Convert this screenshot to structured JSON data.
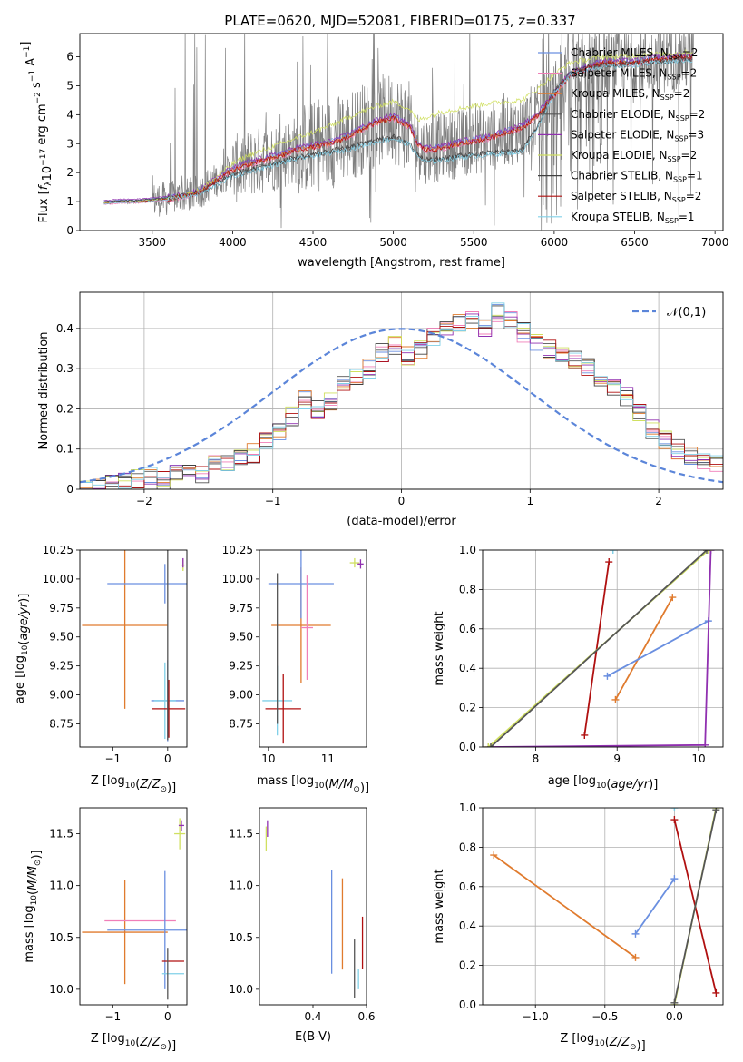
{
  "figure": {
    "title": "PLATE=0620, MJD=52081, FIBERID=0175, z=0.337"
  },
  "series_colors": {
    "Chabrier MILES": "#6a8fe0",
    "Salpeter MILES": "#f07fb8",
    "Kroupa MILES": "#e07b2e",
    "Chabrier ELODIE": "#555555",
    "Salpeter ELODIE": "#9030b0",
    "Kroupa ELODIE": "#d0e060",
    "Chabrier STELIB": "#404040",
    "Salpeter STELIB": "#b01010",
    "Kroupa STELIB": "#80d0e8",
    "Observed": "#7f7f7f",
    "Normal": "#5b85d9"
  },
  "chart_data": [
    {
      "id": "spectrum",
      "type": "line",
      "xlabel": "wavelength [Angstrom, rest frame]",
      "ylabel_parts": [
        "Flux [",
        "f",
        "λ",
        "10",
        "−17",
        " erg cm",
        "−2",
        " s",
        "−1",
        " A",
        "−1",
        "]"
      ],
      "xlim": [
        3050,
        7050
      ],
      "ylim": [
        0,
        6.8
      ],
      "xticks": [
        3500,
        4000,
        4500,
        5000,
        5500,
        6000,
        6500,
        7000
      ],
      "yticks": [
        0,
        1,
        2,
        3,
        4,
        5,
        6
      ],
      "legend": [
        {
          "model": "Chabrier MILES",
          "nssp": "2"
        },
        {
          "model": "Salpeter MILES",
          "nssp": "2"
        },
        {
          "model": "Kroupa MILES",
          "nssp": "2"
        },
        {
          "model": "Chabrier ELODIE",
          "nssp": "2"
        },
        {
          "model": "Salpeter ELODIE",
          "nssp": "3"
        },
        {
          "model": "Kroupa ELODIE",
          "nssp": "2"
        },
        {
          "model": "Chabrier STELIB",
          "nssp": "1"
        },
        {
          "model": "Salpeter STELIB",
          "nssp": "2"
        },
        {
          "model": "Kroupa STELIB",
          "nssp": "1"
        }
      ],
      "legend_prefix": "N",
      "legend_sub": "SSP",
      "legend_placement": "top-right",
      "model_groups": {
        "red": {
          "x": [
            3200,
            3300,
            3400,
            3500,
            3600,
            3700,
            3800,
            3900,
            4000,
            4100,
            4200,
            4300,
            4400,
            4500,
            4600,
            4700,
            4800,
            4900,
            5000,
            5100,
            5150,
            5200,
            5300,
            5400,
            5500,
            5600,
            5700,
            5800,
            5900,
            6000,
            6100,
            6200,
            6300,
            6400,
            6500,
            6600,
            6700,
            6800,
            6860
          ],
          "y": [
            0.95,
            1.0,
            1.0,
            1.05,
            1.1,
            1.2,
            1.35,
            1.75,
            2.1,
            2.3,
            2.45,
            2.6,
            2.8,
            2.9,
            3.0,
            3.2,
            3.5,
            3.75,
            3.9,
            3.6,
            3.0,
            2.8,
            2.85,
            3.0,
            3.1,
            3.2,
            3.4,
            3.55,
            4.0,
            4.7,
            5.4,
            5.6,
            5.8,
            5.8,
            5.8,
            5.9,
            5.95,
            6.0,
            6.0
          ]
        },
        "blue": {
          "x": [
            3200,
            3300,
            3400,
            3500,
            3600,
            3700,
            3800,
            3900,
            4000,
            4100,
            4200,
            4300,
            4400,
            4500,
            4600,
            4700,
            4800,
            4900,
            5000,
            5100,
            5150,
            5200,
            5300,
            5400,
            5500,
            5600,
            5700,
            5800,
            5900,
            6000,
            6100,
            6200,
            6300,
            6400,
            6500,
            6600,
            6700,
            6800,
            6860
          ],
          "y": [
            0.95,
            1.0,
            1.0,
            1.05,
            1.1,
            1.2,
            1.3,
            1.6,
            1.9,
            2.05,
            2.2,
            2.35,
            2.5,
            2.6,
            2.7,
            2.8,
            2.95,
            3.1,
            3.2,
            3.0,
            2.6,
            2.4,
            2.45,
            2.55,
            2.6,
            2.65,
            2.7,
            2.75,
            3.6,
            4.8,
            5.4,
            5.6,
            5.7,
            5.7,
            5.75,
            5.8,
            5.85,
            5.9,
            5.9
          ]
        },
        "yellow": {
          "x": [
            3200,
            3300,
            3400,
            3500,
            3600,
            3700,
            3800,
            3900,
            4000,
            4100,
            4200,
            4300,
            4400,
            4500,
            4600,
            4700,
            4800,
            4900,
            5000,
            5100,
            5150,
            5200,
            5300,
            5400,
            5500,
            5600,
            5700,
            5800,
            5900,
            6000,
            6100,
            6200,
            6300,
            6400,
            6500,
            6600,
            6700,
            6800,
            6860
          ],
          "y": [
            0.95,
            1.0,
            1.0,
            1.05,
            1.1,
            1.25,
            1.4,
            1.85,
            2.3,
            2.6,
            2.8,
            3.0,
            3.2,
            3.4,
            3.6,
            3.85,
            4.1,
            4.3,
            4.45,
            4.2,
            3.8,
            3.9,
            4.1,
            4.2,
            4.3,
            4.4,
            4.45,
            4.5,
            4.9,
            5.4,
            5.8,
            5.9,
            6.0,
            6.0,
            6.05,
            6.1,
            6.1,
            6.15,
            6.15
          ]
        }
      },
      "observed": {
        "xmin": 3200,
        "xmax": 6870,
        "noise_start": 3500,
        "noise_strong": [
          5850,
          6300
        ]
      }
    },
    {
      "id": "residuals",
      "type": "line",
      "xlabel": "(data-model)/error",
      "ylabel": "Normed distribution",
      "xlim": [
        -2.5,
        2.5
      ],
      "ylim": [
        0,
        0.49
      ],
      "xticks": [
        -2,
        -1,
        0,
        1,
        2
      ],
      "yticks": [
        0,
        0.1,
        0.2,
        0.3,
        0.4
      ],
      "grid": true,
      "legend_label": "𝒩(0,1)",
      "legend_placement": "top-right",
      "histogram": {
        "bin_width": 0.1,
        "centers": [
          -2.45,
          -2.35,
          -2.25,
          -2.15,
          -2.05,
          -1.95,
          -1.85,
          -1.75,
          -1.65,
          -1.55,
          -1.45,
          -1.35,
          -1.25,
          -1.15,
          -1.05,
          -0.95,
          -0.85,
          -0.75,
          -0.65,
          -0.55,
          -0.45,
          -0.35,
          -0.25,
          -0.15,
          -0.05,
          0.05,
          0.15,
          0.25,
          0.35,
          0.45,
          0.55,
          0.65,
          0.75,
          0.85,
          0.95,
          1.05,
          1.15,
          1.25,
          1.35,
          1.45,
          1.55,
          1.65,
          1.75,
          1.85,
          1.95,
          2.05,
          2.15,
          2.25,
          2.35,
          2.45
        ],
        "values": [
          0.005,
          0.01,
          0.02,
          0.02,
          0.025,
          0.03,
          0.02,
          0.04,
          0.05,
          0.04,
          0.06,
          0.07,
          0.08,
          0.09,
          0.12,
          0.14,
          0.18,
          0.22,
          0.2,
          0.22,
          0.26,
          0.28,
          0.3,
          0.34,
          0.36,
          0.33,
          0.35,
          0.38,
          0.4,
          0.41,
          0.42,
          0.4,
          0.44,
          0.42,
          0.39,
          0.37,
          0.35,
          0.33,
          0.32,
          0.3,
          0.28,
          0.25,
          0.23,
          0.19,
          0.15,
          0.12,
          0.1,
          0.08,
          0.07,
          0.06
        ]
      }
    },
    {
      "id": "age-vs-Z",
      "type": "scatter",
      "xlabel_parts": [
        "Z [log",
        "10",
        "(",
        "Z/Z",
        "⊙",
        ")]"
      ],
      "ylabel_parts": [
        "age  [log",
        "10",
        "(",
        "age/yr",
        ")]"
      ],
      "xlim": [
        -1.6,
        0.35
      ],
      "ylim": [
        8.55,
        10.25
      ],
      "xticks": [
        -1,
        0
      ],
      "yticks": [
        8.75,
        9.0,
        9.25,
        9.5,
        9.75,
        10.0,
        10.25
      ],
      "ytick_labels": [
        "8.75",
        "9.00",
        "9.25",
        "9.50",
        "9.75",
        "10.00",
        "10.25"
      ],
      "errorbars": [
        {
          "model": "Kroupa MILES",
          "x": -0.78,
          "y": 9.6,
          "xerr": 0.78,
          "yerr": 0.72
        },
        {
          "model": "Chabrier MILES",
          "x": -0.05,
          "y": 9.96,
          "xerr": 1.05,
          "yerr": 0.17
        },
        {
          "model": "Chabrier MILES",
          "x": 0.0,
          "y": 8.95,
          "xerr": 0.3,
          "yerr": 0.35
        },
        {
          "model": "Kroupa STELIB",
          "x": -0.05,
          "y": 8.95,
          "xerr": 0.2,
          "yerr": 0.33
        },
        {
          "model": "Salpeter STELIB",
          "x": 0.02,
          "y": 8.88,
          "xerr": 0.3,
          "yerr": 0.25
        },
        {
          "model": "Chabrier ELODIE",
          "x": 0.0,
          "y": 9.6,
          "xerr": 0.0,
          "yerr": 0.99
        },
        {
          "model": "Kroupa ELODIE",
          "x": 0.28,
          "y": 10.12,
          "xerr": 0.03,
          "yerr": 0.05
        },
        {
          "model": "Salpeter ELODIE",
          "x": 0.28,
          "y": 10.14,
          "xerr": 0.0,
          "yerr": 0.04
        }
      ]
    },
    {
      "id": "age-vs-mass",
      "type": "scatter",
      "xlabel_parts": [
        "mass [log",
        "10",
        "(",
        "M/M",
        "⊙",
        ")]"
      ],
      "xlim": [
        9.85,
        11.65
      ],
      "ylim": [
        8.55,
        10.25
      ],
      "xticks": [
        10,
        11
      ],
      "yticks": [
        8.75,
        9.0,
        9.25,
        9.5,
        9.75,
        10.0,
        10.25
      ],
      "ytick_labels": [
        "8.75",
        "9.00",
        "9.25",
        "9.50",
        "9.75",
        "10.00",
        "10.25"
      ],
      "errorbars": [
        {
          "model": "Kroupa MILES",
          "x": 10.55,
          "y": 9.6,
          "xerr": 0.5,
          "yerr": 0.5
        },
        {
          "model": "Chabrier MILES",
          "x": 10.55,
          "y": 9.96,
          "xerr": 0.55,
          "yerr": 0.3
        },
        {
          "model": "Salpeter MILES",
          "x": 10.65,
          "y": 9.58,
          "xerr": 0.1,
          "yerr": 0.45
        },
        {
          "model": "Kroupa STELIB",
          "x": 10.15,
          "y": 8.95,
          "xerr": 0.25,
          "yerr": 0.3
        },
        {
          "model": "Salpeter STELIB",
          "x": 10.25,
          "y": 8.88,
          "xerr": 0.3,
          "yerr": 0.3
        },
        {
          "model": "Chabrier ELODIE",
          "x": 10.15,
          "y": 9.4,
          "xerr": 0.0,
          "yerr": 0.65
        },
        {
          "model": "Kroupa ELODIE",
          "x": 11.45,
          "y": 10.14,
          "xerr": 0.08,
          "yerr": 0.04
        },
        {
          "model": "Salpeter ELODIE",
          "x": 11.55,
          "y": 10.13,
          "xerr": 0.05,
          "yerr": 0.04
        }
      ]
    },
    {
      "id": "mass-weight-vs-age",
      "type": "line",
      "xlabel_parts": [
        "age  [log",
        "10",
        "(",
        "age/yr",
        ")]"
      ],
      "ylabel": "mass weight",
      "xlim": [
        7.35,
        10.3
      ],
      "ylim": [
        0,
        1
      ],
      "xticks": [
        8,
        9,
        10
      ],
      "yticks": [
        0,
        0.2,
        0.4,
        0.6,
        0.8,
        1.0
      ],
      "ytick_labels": [
        "0.0",
        "0.2",
        "0.4",
        "0.6",
        "0.8",
        "1.0"
      ],
      "grid": true,
      "lines": [
        {
          "model": "Salpeter STELIB",
          "x": [
            8.6,
            8.9
          ],
          "y": [
            0.06,
            0.94
          ]
        },
        {
          "model": "Kroupa MILES",
          "x": [
            8.98,
            9.68
          ],
          "y": [
            0.24,
            0.76
          ]
        },
        {
          "model": "Chabrier MILES",
          "x": [
            8.88,
            10.12
          ],
          "y": [
            0.36,
            0.64
          ]
        },
        {
          "model": "Salpeter ELODIE",
          "x": [
            7.42,
            10.08,
            10.15
          ],
          "y": [
            0.0,
            0.01,
            1.0
          ]
        },
        {
          "model": "Kroupa ELODIE",
          "x": [
            7.42,
            10.12
          ],
          "y": [
            0.0,
            1.0
          ]
        },
        {
          "model": "Chabrier ELODIE",
          "x": [
            7.45,
            10.1
          ],
          "y": [
            0.0,
            1.0
          ]
        },
        {
          "model": "Kroupa STELIB",
          "x": [
            8.95
          ],
          "y": [
            1.0
          ]
        }
      ]
    },
    {
      "id": "mass-vs-Z",
      "type": "scatter",
      "xlabel_parts": [
        "Z [log",
        "10",
        "(",
        "Z/Z",
        "⊙",
        ")]"
      ],
      "ylabel_parts": [
        "mass [log",
        "10",
        "(",
        "M/M",
        "⊙",
        ")]"
      ],
      "xlim": [
        -1.6,
        0.35
      ],
      "ylim": [
        9.85,
        11.75
      ],
      "xticks": [
        -1,
        0
      ],
      "yticks": [
        10.0,
        10.5,
        11.0,
        11.5
      ],
      "ytick_labels": [
        "10.0",
        "10.5",
        "11.0",
        "11.5"
      ],
      "errorbars": [
        {
          "model": "Kroupa MILES",
          "x": -0.78,
          "y": 10.55,
          "xerr": 0.78,
          "yerr": 0.5
        },
        {
          "model": "Salpeter MILES",
          "x": -0.5,
          "y": 10.66,
          "xerr": 0.65,
          "yerr": 0.0
        },
        {
          "model": "Chabrier MILES",
          "x": -0.05,
          "y": 10.57,
          "xerr": 1.05,
          "yerr": 0.57
        },
        {
          "model": "Kroupa STELIB",
          "x": 0.1,
          "y": 10.15,
          "xerr": 0.2,
          "yerr": 0.0
        },
        {
          "model": "Salpeter STELIB",
          "x": 0.1,
          "y": 10.27,
          "xerr": 0.2,
          "yerr": 0.0
        },
        {
          "model": "Chabrier ELODIE",
          "x": 0.0,
          "y": 10.15,
          "xerr": 0.0,
          "yerr": 0.25
        },
        {
          "model": "Kroupa ELODIE",
          "x": 0.22,
          "y": 11.5,
          "xerr": 0.1,
          "yerr": 0.15
        },
        {
          "model": "Salpeter ELODIE",
          "x": 0.25,
          "y": 11.58,
          "xerr": 0.05,
          "yerr": 0.05
        }
      ]
    },
    {
      "id": "mass-vs-ebv",
      "type": "scatter",
      "xlabel": "E(B-V)",
      "xlim": [
        0.2,
        0.6
      ],
      "ylim": [
        9.85,
        11.75
      ],
      "xticks": [
        0.4,
        0.6
      ],
      "yticks": [
        10.0,
        10.5,
        11.0,
        11.5
      ],
      "ytick_labels": [
        "10.0",
        "10.5",
        "11.0",
        "11.5"
      ],
      "errorbars": [
        {
          "model": "Chabrier MILES",
          "x": 0.47,
          "y": 10.65,
          "xerr": 0.0,
          "yerr": 0.5
        },
        {
          "model": "Kroupa MILES",
          "x": 0.51,
          "y": 10.63,
          "xerr": 0.0,
          "yerr": 0.44
        },
        {
          "model": "Chabrier ELODIE",
          "x": 0.555,
          "y": 10.2,
          "xerr": 0.0,
          "yerr": 0.28
        },
        {
          "model": "Kroupa STELIB",
          "x": 0.57,
          "y": 10.1,
          "xerr": 0.0,
          "yerr": 0.1
        },
        {
          "model": "Salpeter STELIB",
          "x": 0.585,
          "y": 10.45,
          "xerr": 0.0,
          "yerr": 0.25
        },
        {
          "model": "Kroupa ELODIE",
          "x": 0.225,
          "y": 11.45,
          "xerr": 0.0,
          "yerr": 0.12
        },
        {
          "model": "Salpeter ELODIE",
          "x": 0.23,
          "y": 11.55,
          "xerr": 0.0,
          "yerr": 0.08
        }
      ]
    },
    {
      "id": "mass-weight-vs-Z",
      "type": "line",
      "xlabel_parts": [
        "Z [log",
        "10",
        "(",
        "Z/Z",
        "⊙",
        ")]"
      ],
      "ylabel": "mass weight",
      "xlim": [
        -1.38,
        0.35
      ],
      "ylim": [
        0,
        1
      ],
      "xticks": [
        -1.0,
        -0.5,
        0.0
      ],
      "xtick_labels": [
        "−1.0",
        "−0.5",
        "0.0"
      ],
      "yticks": [
        0,
        0.2,
        0.4,
        0.6,
        0.8,
        1.0
      ],
      "ytick_labels": [
        "0.0",
        "0.2",
        "0.4",
        "0.6",
        "0.8",
        "1.0"
      ],
      "grid": true,
      "lines": [
        {
          "model": "Kroupa MILES",
          "x": [
            -1.3,
            -0.28
          ],
          "y": [
            0.76,
            0.24
          ]
        },
        {
          "model": "Chabrier MILES",
          "x": [
            -0.28,
            0.0
          ],
          "y": [
            0.36,
            0.64
          ]
        },
        {
          "model": "Salpeter STELIB",
          "x": [
            0.0,
            0.3
          ],
          "y": [
            0.94,
            0.06
          ]
        },
        {
          "model": "Kroupa ELODIE",
          "x": [
            0.0,
            0.3
          ],
          "y": [
            0.0,
            1.0
          ]
        },
        {
          "model": "Chabrier ELODIE",
          "x": [
            0.0,
            0.3
          ],
          "y": [
            0.01,
            0.99
          ]
        },
        {
          "model": "Kroupa STELIB",
          "x": [
            0.0
          ],
          "y": [
            1.0
          ]
        }
      ]
    }
  ]
}
